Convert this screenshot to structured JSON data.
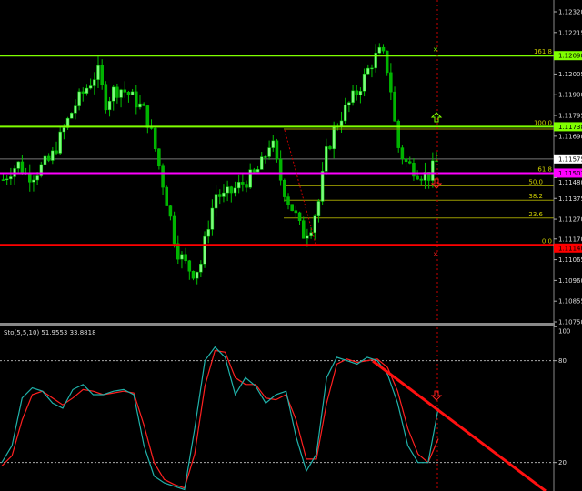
{
  "chart_data": [
    {
      "type": "candlestick",
      "symbol_pane": "main",
      "ylim": [
        1.1075,
        1.1232
      ],
      "y_ticks": [
        "1.12320",
        "1.12215",
        "1.12005",
        "1.11900",
        "1.11795",
        "1.11690",
        "1.11480",
        "1.11375",
        "1.11270",
        "1.11170",
        "1.11065",
        "1.10960",
        "1.10855",
        "1.10750"
      ],
      "current_price": "1.11575",
      "levels": [
        {
          "price": 1.12098,
          "label": "1.12098",
          "fib": "161.8",
          "color": "#7fff00"
        },
        {
          "price": 1.11738,
          "label": "1.11738",
          "fib": "100.0",
          "color": "#7fff00"
        },
        {
          "price": 1.11503,
          "label": "1.11503",
          "fib": "61.8",
          "color": "#ff00ff"
        },
        {
          "price": 1.1114,
          "label": "1.11140",
          "fib": "0.0",
          "color": "#ff0000"
        }
      ],
      "fib_levels": [
        {
          "label": "50.0",
          "price": 1.11439
        },
        {
          "label": "38.2",
          "price": 1.11366
        },
        {
          "label": "23.6",
          "price": 1.11276
        }
      ],
      "close_path": [
        1.1147,
        1.1152,
        1.1155,
        1.1149,
        1.115,
        1.1154,
        1.1157,
        1.1166,
        1.1175,
        1.1184,
        1.119,
        1.1196,
        1.1202,
        1.1186,
        1.1192,
        1.1193,
        1.119,
        1.1186,
        1.1181,
        1.1168,
        1.115,
        1.1132,
        1.1112,
        1.1105,
        1.11,
        1.1103,
        1.1124,
        1.114,
        1.1138,
        1.1141,
        1.1144,
        1.1147,
        1.115,
        1.1156,
        1.1168,
        1.115,
        1.1138,
        1.113,
        1.1119,
        1.1123,
        1.1135,
        1.116,
        1.1172,
        1.118,
        1.1186,
        1.1192,
        1.12,
        1.1208,
        1.1212,
        1.12,
        1.1165,
        1.1156,
        1.1153,
        1.115,
        1.1149,
        1.1156
      ]
    },
    {
      "type": "line",
      "title": "Sto(5,5,10) 51.9553 33.8818",
      "ylim": [
        0,
        100
      ],
      "y_ticks": [
        "100",
        "80",
        "20",
        "0"
      ],
      "levels": [
        80,
        20
      ],
      "main_path": [
        20,
        30,
        58,
        64,
        62,
        55,
        52,
        63,
        66,
        60,
        60,
        62,
        63,
        60,
        30,
        12,
        8,
        6,
        4,
        40,
        80,
        88,
        82,
        60,
        70,
        65,
        55,
        60,
        62,
        35,
        15,
        25,
        70,
        82,
        80,
        78,
        82,
        80,
        72,
        55,
        30,
        20,
        20,
        52
      ],
      "signal_path": [
        18,
        24,
        45,
        60,
        62,
        58,
        54,
        58,
        63,
        62,
        60,
        61,
        62,
        61,
        42,
        20,
        10,
        7,
        5,
        25,
        65,
        86,
        85,
        70,
        66,
        66,
        58,
        57,
        60,
        45,
        22,
        22,
        55,
        78,
        81,
        79,
        80,
        81,
        76,
        62,
        40,
        25,
        20,
        34
      ]
    }
  ],
  "colors": {
    "bull": "#7cfc7c",
    "bear": "#00b400",
    "stoch_main": "#20b2aa",
    "stoch_signal": "#ff2020",
    "grid": "#808080"
  }
}
